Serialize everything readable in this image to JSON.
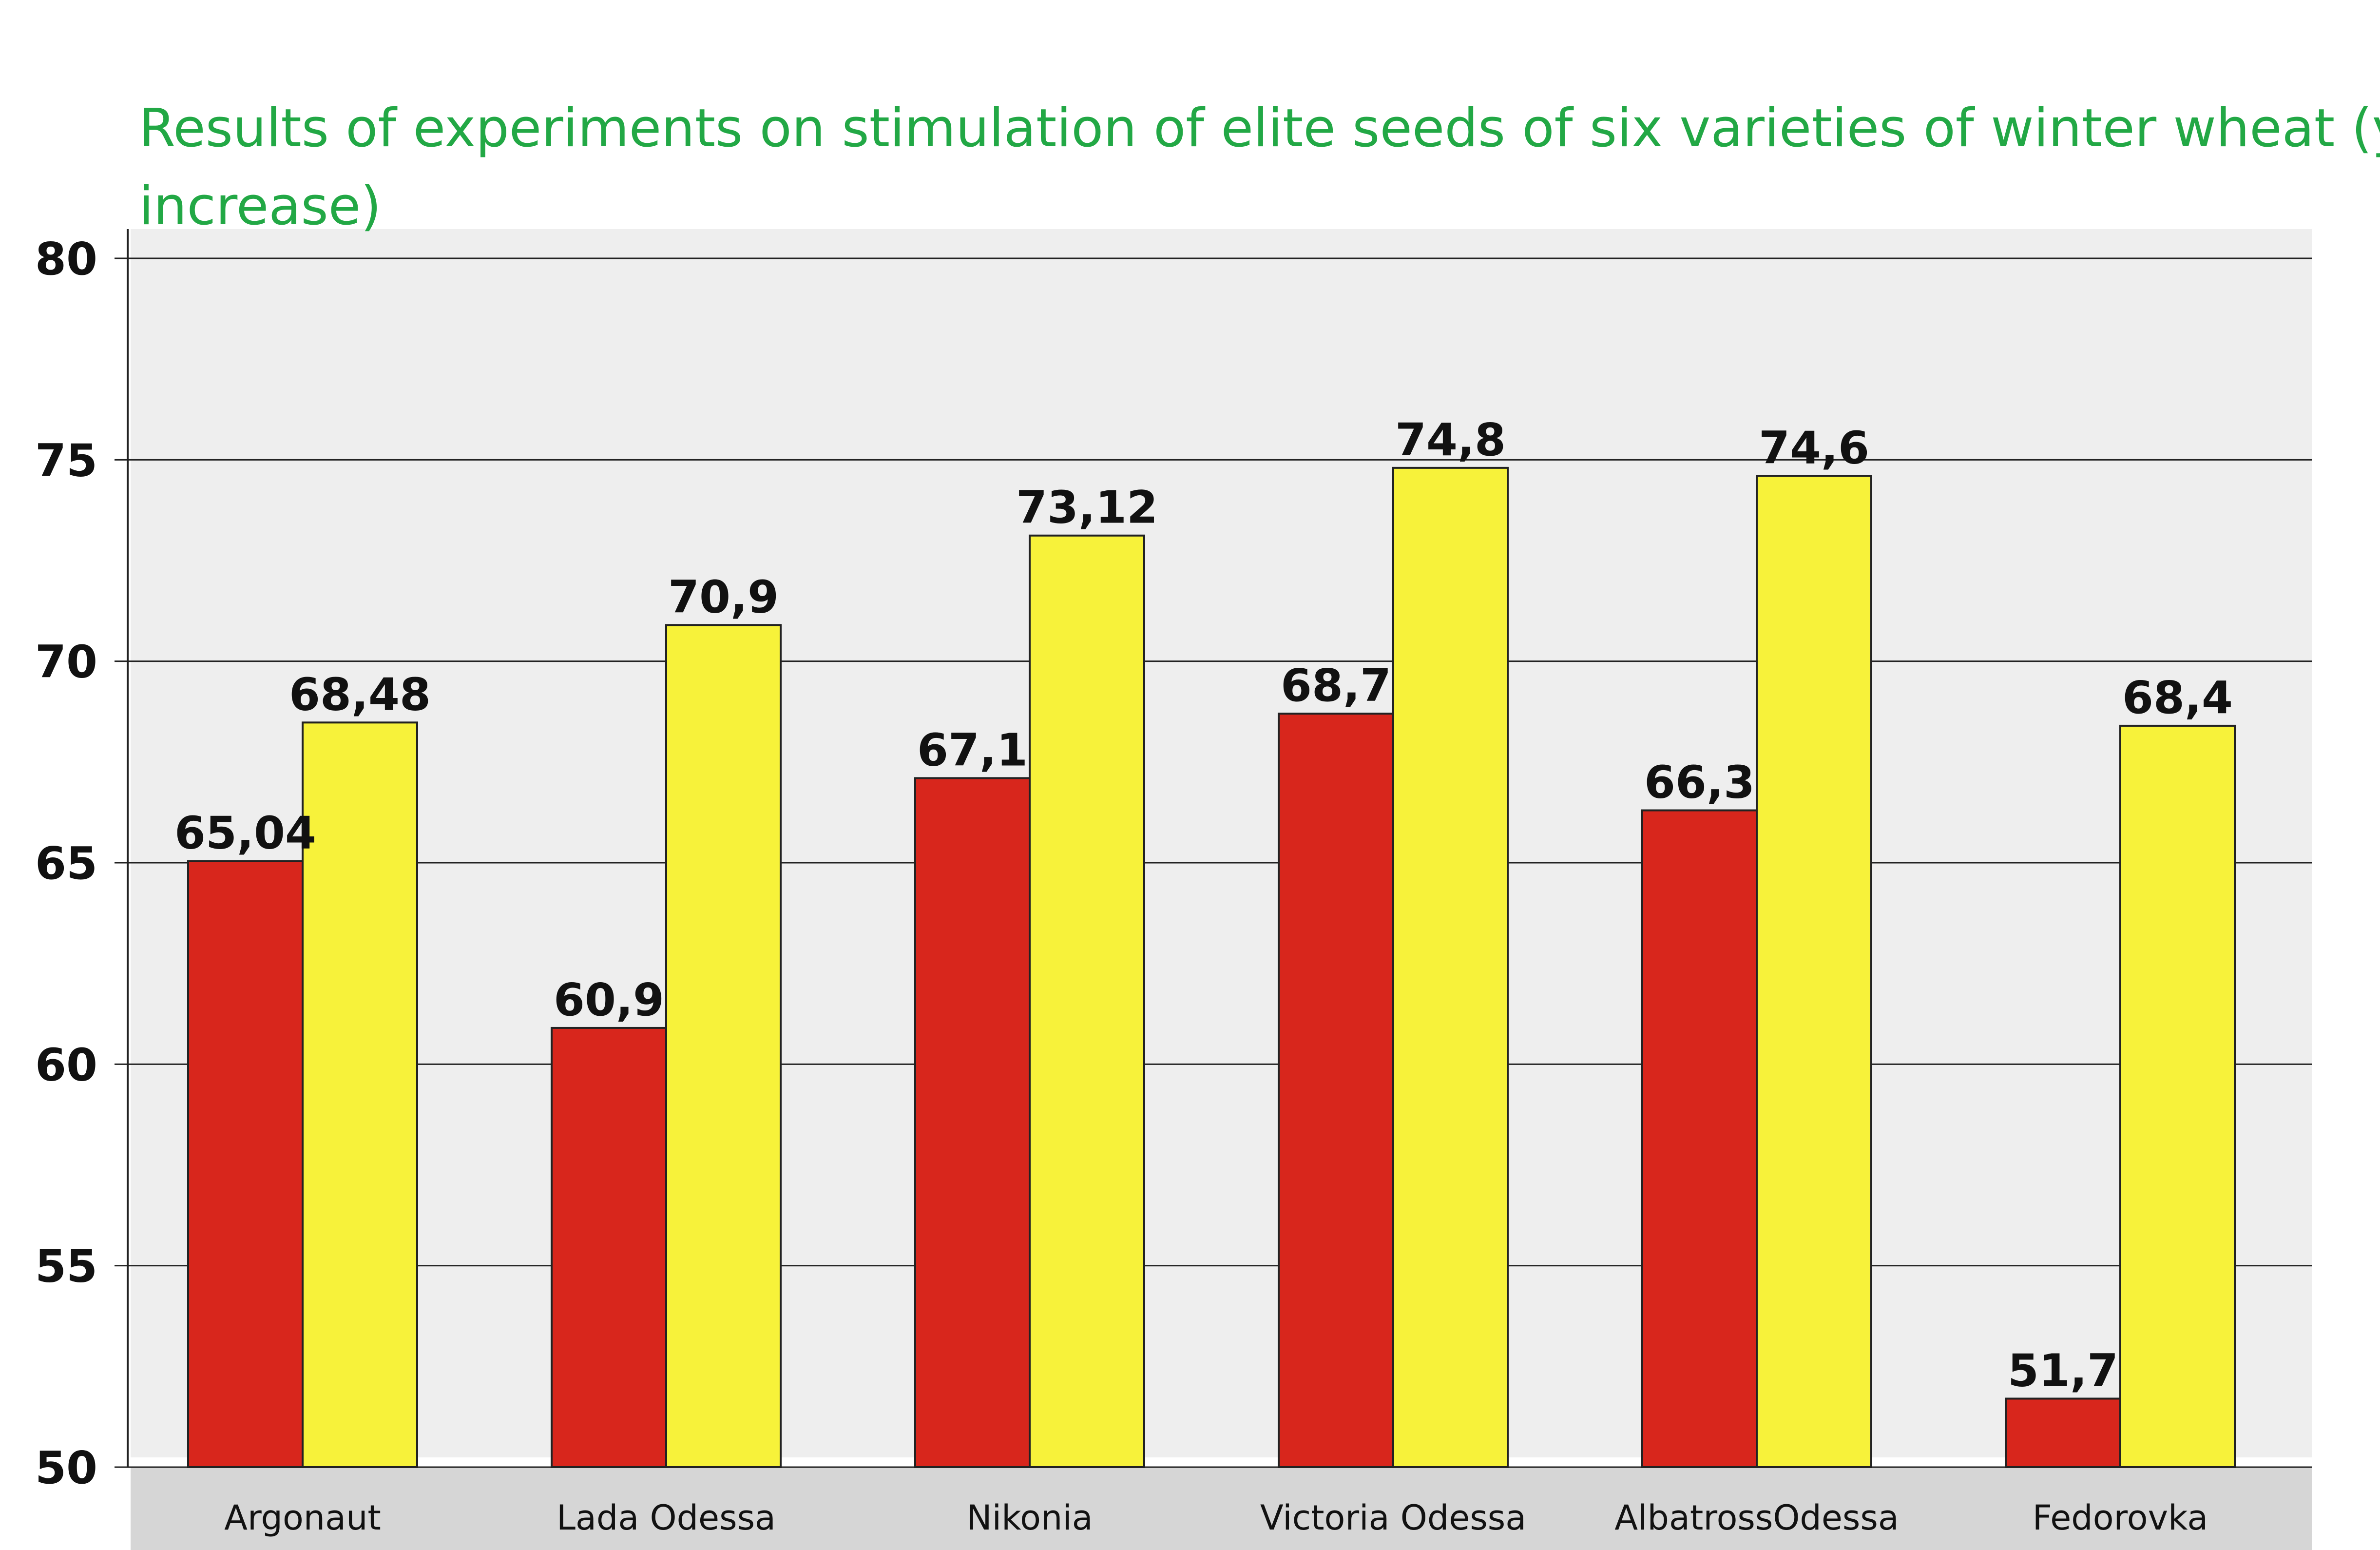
{
  "chart_data": {
    "type": "bar",
    "title": "Results of experiments on stimulation of elite seeds of six varieties of winter wheat (yield increase)",
    "categories": [
      "Argonaut",
      "Lada Odessa",
      "Nikonia",
      "Victoria Odessa",
      "AlbatrossOdessa",
      "Fedorovka"
    ],
    "series": [
      {
        "color": "#d8261c",
        "values": [
          65.04,
          60.9,
          67.1,
          68.7,
          66.3,
          51.7
        ],
        "labels": [
          "65,04",
          "60,9",
          "67,1",
          "68,7",
          "66,3",
          "51,7"
        ]
      },
      {
        "color": "#f7f23a",
        "values": [
          68.48,
          70.9,
          73.12,
          74.8,
          74.6,
          68.4
        ],
        "labels": [
          "68,48",
          "70,9",
          "73,12",
          "74,8",
          "74,6",
          "68,4"
        ]
      }
    ],
    "ylim": [
      50,
      80
    ],
    "yticks": [
      50,
      55,
      60,
      65,
      70,
      75,
      80
    ],
    "grid": true,
    "colors": {
      "title": "#22a845",
      "plot_background": "#eeeeee",
      "axis_band": "#d6d6d6"
    }
  }
}
